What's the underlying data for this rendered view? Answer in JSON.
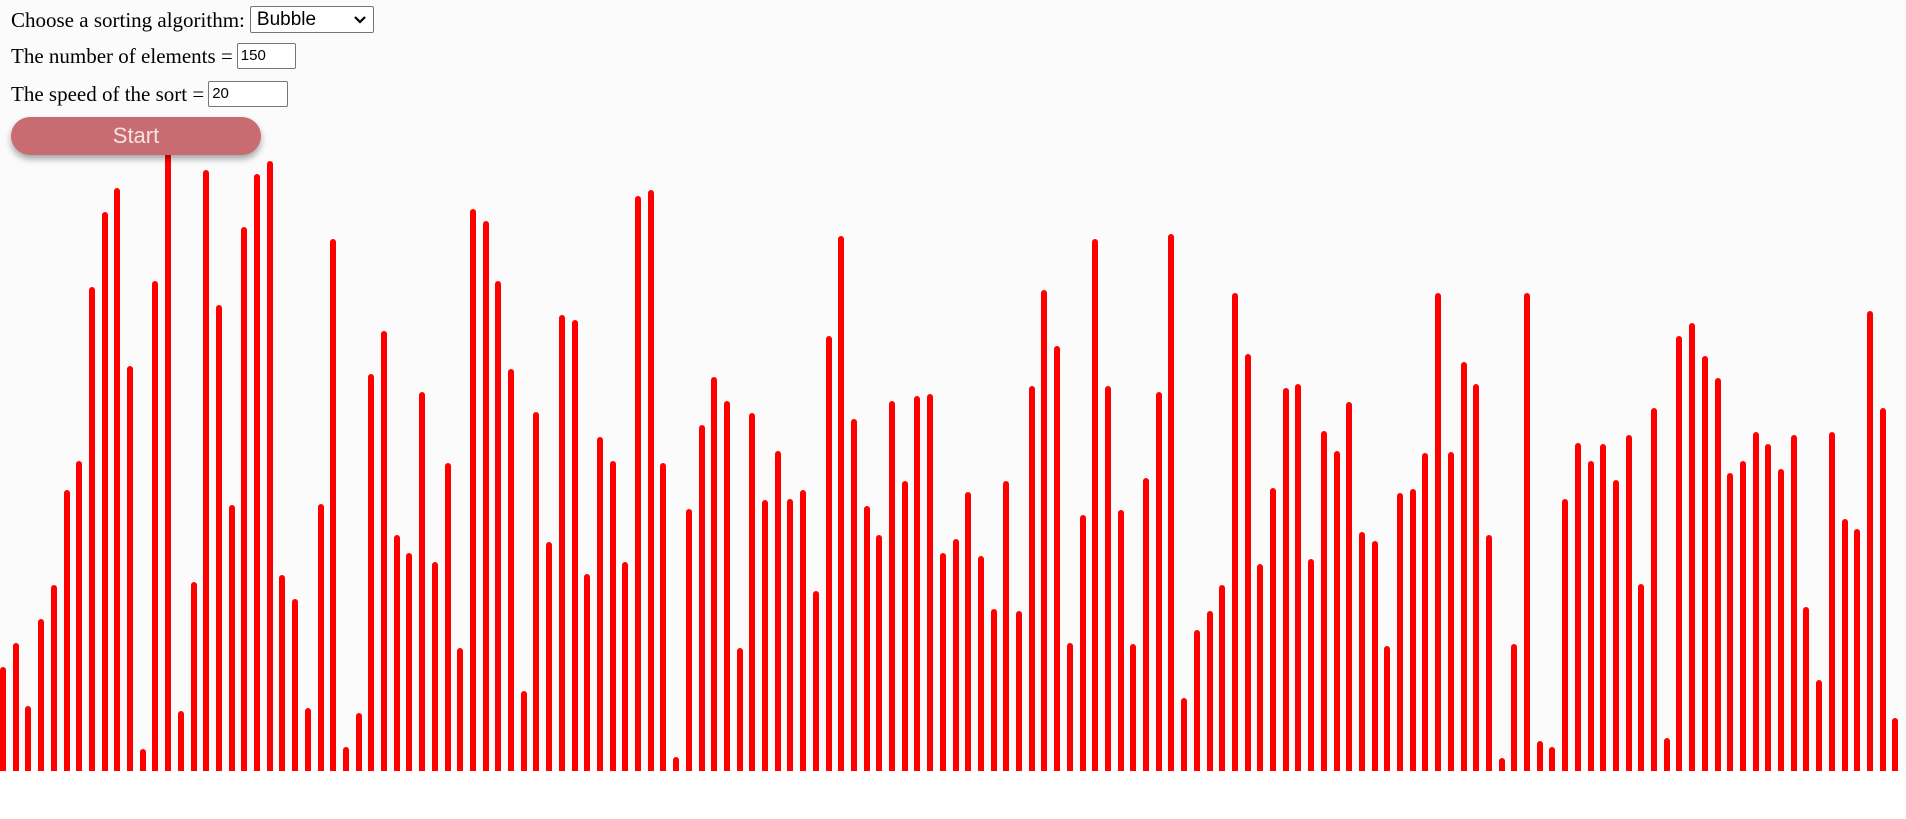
{
  "controls": {
    "algorithm_label": "Choose a sorting algorithm:",
    "algorithm_value": "Bubble",
    "count_label": "The number of elements =",
    "count_value": "150",
    "speed_label": "The speed of the sort =",
    "speed_value": "20",
    "start_label": "Start"
  },
  "icons": {
    "select_arrow": "chevron-down-icon"
  },
  "colors": {
    "bar": "#ff0000",
    "button": "#c96c71",
    "background": "#fbfbfc"
  },
  "bars": {
    "max_value": 520,
    "values": [
      86,
      106,
      54,
      126,
      154,
      232,
      256,
      400,
      462,
      482,
      335,
      18,
      405,
      517,
      50,
      156,
      497,
      385,
      220,
      450,
      494,
      504,
      162,
      142,
      52,
      221,
      440,
      20,
      48,
      328,
      364,
      195,
      180,
      313,
      173,
      255,
      102,
      465,
      455,
      405,
      332,
      66,
      297,
      189,
      377,
      373,
      163,
      276,
      256,
      173,
      475,
      480,
      255,
      12,
      217,
      286,
      326,
      306,
      102,
      296,
      224,
      265,
      225,
      232,
      149,
      360,
      442,
      291,
      219,
      195,
      306,
      240,
      310,
      312,
      180,
      192,
      231,
      178,
      134,
      240,
      132,
      318,
      398,
      351,
      106,
      212,
      440,
      318,
      216,
      105,
      242,
      313,
      444,
      60,
      117,
      132,
      154,
      395,
      345,
      171,
      234,
      317,
      320,
      175,
      281,
      265,
      305,
      198,
      190,
      103,
      230,
      233,
      263,
      395,
      264,
      338,
      320,
      195,
      11,
      105,
      395,
      25,
      20,
      225,
      271,
      256,
      270,
      241,
      278,
      155,
      300,
      27,
      360,
      370,
      343,
      325,
      246,
      256,
      280,
      270,
      250,
      278,
      136,
      75,
      280,
      208,
      200,
      380,
      300,
      44
    ]
  }
}
